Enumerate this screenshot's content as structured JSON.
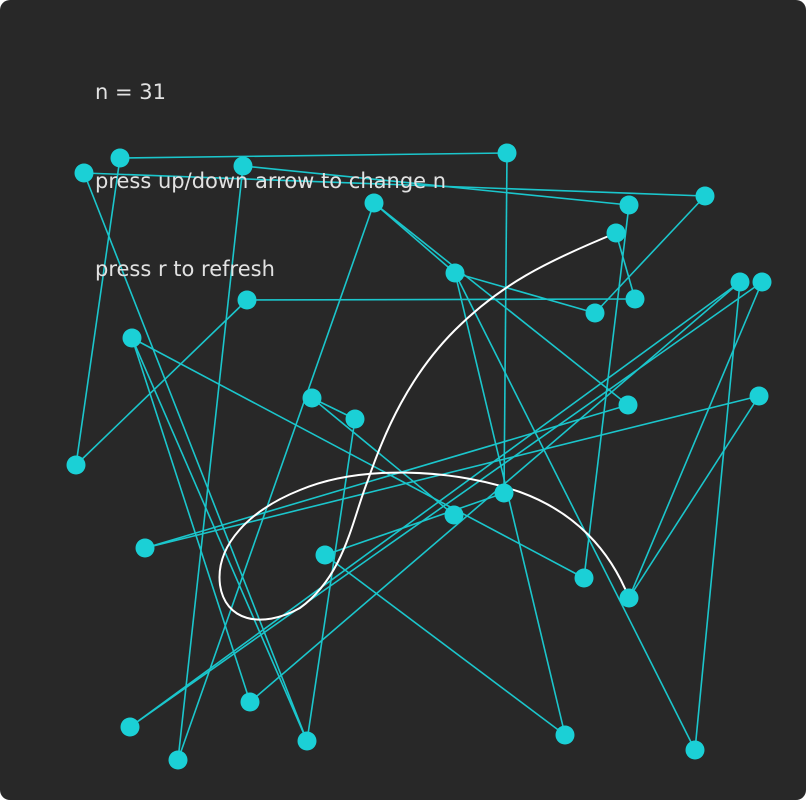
{
  "info": {
    "n_text": "n = 31",
    "instruction_arrows": "press up/down arrow to change n",
    "instruction_refresh": "press r to refresh"
  },
  "colors": {
    "background": "#282828",
    "accent": "#1bd0d6",
    "curve": "#ffffff",
    "text": "#e2e2e2"
  }
}
